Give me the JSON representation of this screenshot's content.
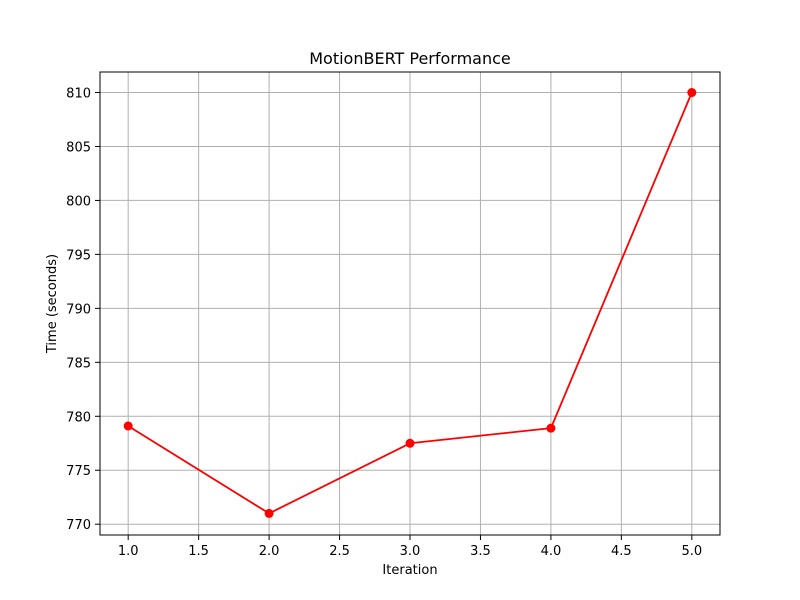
{
  "chart_data": {
    "type": "line",
    "title": "MotionBERT Performance",
    "xlabel": "Iteration",
    "ylabel": "Time (seconds)",
    "x": [
      1,
      2,
      3,
      4,
      5
    ],
    "series": [
      {
        "values": [
          779.1,
          771.0,
          777.5,
          778.9,
          810.0
        ],
        "color": "#ff0000",
        "marker": "circle"
      }
    ],
    "xlim": [
      0.8,
      5.2
    ],
    "ylim": [
      769.0,
      811.9
    ],
    "xticks": [
      1.0,
      1.5,
      2.0,
      2.5,
      3.0,
      3.5,
      4.0,
      4.5,
      5.0
    ],
    "xtick_labels": [
      "1.0",
      "1.5",
      "2.0",
      "2.5",
      "3.0",
      "3.5",
      "4.0",
      "4.5",
      "5.0"
    ],
    "yticks": [
      770,
      775,
      780,
      785,
      790,
      795,
      800,
      805,
      810
    ],
    "ytick_labels": [
      "770",
      "775",
      "780",
      "785",
      "790",
      "795",
      "800",
      "805",
      "810"
    ],
    "grid": true,
    "grid_color": "#b0b0b0"
  }
}
